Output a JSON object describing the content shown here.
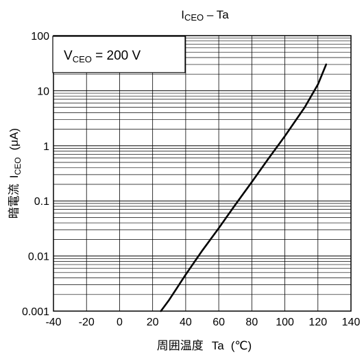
{
  "chart_data": {
    "type": "line",
    "title": {
      "main": "I",
      "sub": "CEO",
      "rest": " – Ta"
    },
    "xlabel": {
      "prefix": "周囲温度",
      "symbol": "Ta",
      "unit": "(℃)"
    },
    "ylabel": {
      "prefix": "暗電流",
      "symbol": "I",
      "sub": "CEO",
      "unit": "(μA)"
    },
    "xlim": [
      -40,
      140
    ],
    "ylim": [
      0.001,
      100
    ],
    "yscale": "log",
    "grid": true,
    "x_ticks": [
      "-40",
      "-20",
      "0",
      "20",
      "40",
      "60",
      "80",
      "100",
      "120",
      "140"
    ],
    "y_ticks": [
      "100",
      "10",
      "1",
      "0.1",
      "0.01",
      "0.001"
    ],
    "annotation": {
      "main": "V",
      "sub": "CEO",
      "rest": " = 200 V",
      "placement": "top-left"
    },
    "series": [
      {
        "color": "#000000",
        "x": [
          25,
          30,
          40,
          50,
          60,
          70,
          80,
          90,
          100,
          112,
          120,
          125
        ],
        "y": [
          0.001,
          0.0016,
          0.0046,
          0.0125,
          0.032,
          0.085,
          0.22,
          0.58,
          1.5,
          5.0,
          13,
          30
        ]
      }
    ]
  }
}
